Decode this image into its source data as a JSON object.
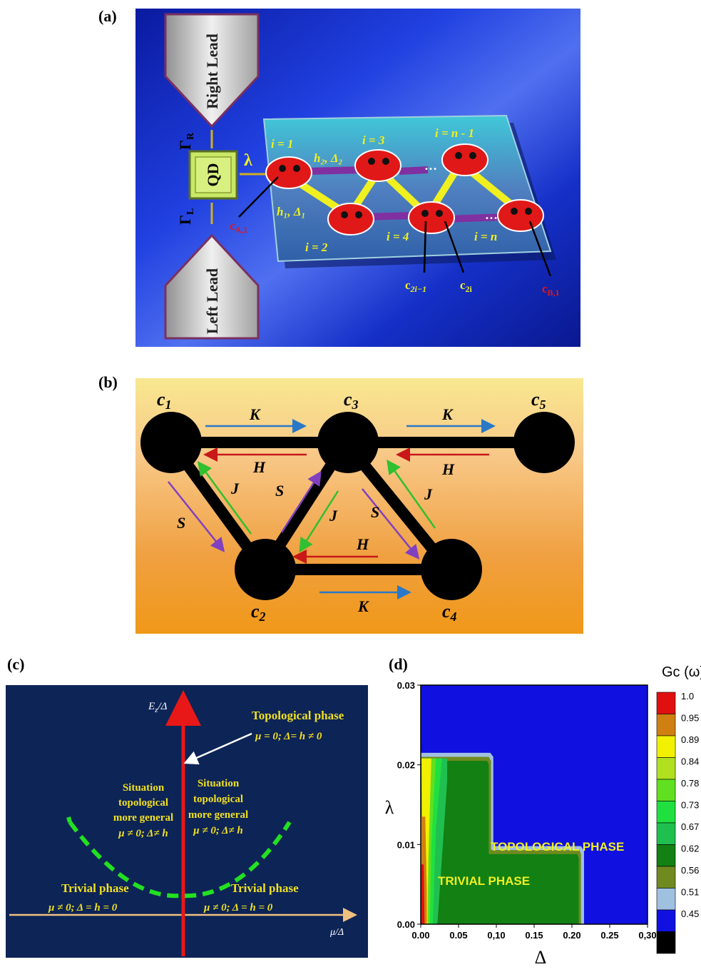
{
  "panel_labels": {
    "a": "(a)",
    "b": "(b)",
    "c": "(c)",
    "d": "(d)"
  },
  "panel_a": {
    "right_lead": "Right Lead",
    "left_lead": "Left Lead",
    "qd": "QD",
    "gamma_r": "Γ",
    "gamma_r_sub": "R",
    "gamma_l": "Γ",
    "gamma_l_sub": "L",
    "lambda": "λ",
    "site_i1": "i = 1",
    "site_i2": "i = 2",
    "site_i3": "i = 3",
    "site_i4": "i = 4",
    "site_in1": "i = n - 1",
    "site_in": "i = n",
    "h2_delta2": "h₂, Δ₂",
    "h1_delta1": "h₁, Δ₁",
    "dots1": "…",
    "dots2": "…",
    "c_a1": "c",
    "c_a1_sub": "A,1",
    "c_2i1": "c",
    "c_2i1_sub": "2i−1",
    "c_2i": "c",
    "c_2i_sub": "2i",
    "c_b1": "c",
    "c_b1_sub": "B,1",
    "colors": {
      "background": "#1530c8",
      "chip": "#3aa7c0",
      "site": "#e01818",
      "qd": "#c8e866"
    }
  },
  "panel_b": {
    "c1": "c",
    "c1_sub": "1",
    "c2": "c",
    "c2_sub": "2",
    "c3": "c",
    "c3_sub": "3",
    "c4": "c",
    "c4_sub": "4",
    "c5": "c",
    "c5_sub": "5",
    "k_top_left": "K",
    "h_top_left": "H",
    "k_top_right": "K",
    "h_top_right": "H",
    "s_left": "S",
    "j_left": "J",
    "s_mid": "S",
    "j_mid": "J",
    "s_right": "S",
    "j_right": "J",
    "h_bottom": "H",
    "k_bottom": "K",
    "colors": {
      "k_arrow": "#2a78c8",
      "h_arrow": "#c81818",
      "s_arrow": "#8040c0",
      "j_arrow": "#30c030"
    }
  },
  "panel_c": {
    "y_axis": "E",
    "y_axis_sub": "z",
    "y_axis_rest": "/Δ",
    "x_axis": "μ/Δ",
    "topological_title": "Topological phase",
    "topological_cond": "μ = 0; Δ= h ≠ 0",
    "left_situation": [
      "Situation",
      "topological",
      "more general",
      "μ ≠ 0; Δ≠ h"
    ],
    "right_situation": [
      "Situation",
      "topological",
      "more general",
      "μ ≠ 0; Δ≠ h"
    ],
    "trivial_left_title": "Trivial phase",
    "trivial_left_cond": "μ ≠ 0; Δ = h =  0",
    "trivial_right_title": "Trivial phase",
    "trivial_right_cond": "μ ≠ 0; Δ = h =  0",
    "colors": {
      "background": "#0d2456",
      "axis": "#e81818",
      "parabola": "#22e022",
      "text": "#f0e020"
    }
  },
  "panel_d": {
    "chart_data": {
      "type": "heatmap",
      "xlabel": "Δ",
      "ylabel": "λ",
      "xlim": [
        0.0,
        0.3
      ],
      "ylim": [
        0.0,
        0.03
      ],
      "x_ticks": [
        "0.00",
        "0.05",
        "0,10",
        "0.15",
        "0.20",
        "0.25",
        "0,30"
      ],
      "y_ticks": [
        "0.00",
        "0.01",
        "0.02",
        "0.03"
      ],
      "annotations": [
        "TOPOLOGICAL PHASE",
        "TRIVIAL PHASE"
      ],
      "legend_title": "Gc (ω)",
      "legend_levels": [
        "1.0",
        "0.95",
        "0.89",
        "0.84",
        "0.78",
        "0.73",
        "0.67",
        "0.62",
        "0.56",
        "0.51",
        "0.45"
      ],
      "legend_colors": [
        "#e01010",
        "#d08010",
        "#f0f000",
        "#b0e020",
        "#60e020",
        "#20e040",
        "#20c050",
        "#128012",
        "#708a20",
        "#a0c0e0",
        "#1010e0",
        "#000000"
      ],
      "legend_placement": "right"
    }
  }
}
